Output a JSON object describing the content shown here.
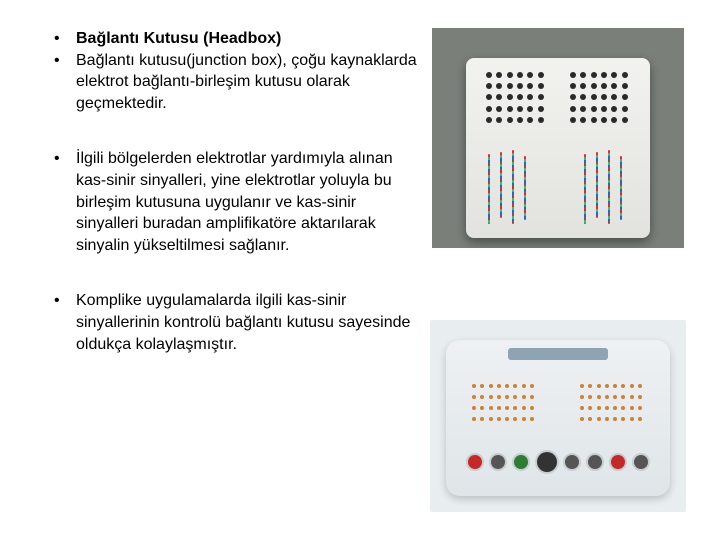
{
  "bullets": [
    {
      "bold": true,
      "text": "Bağlantı Kutusu (Headbox)"
    },
    {
      "bold": false,
      "text": "Bağlantı kutusu(junction box), çoğu kaynaklarda elektrot bağlantı-birleşim kutusu olarak geçmektedir."
    },
    {
      "bold": false,
      "text": "İlgili bölgelerden elektrotlar yardımıyla alınan kas-sinir sinyalleri, yine elektrotlar yoluyla bu birleşim kutusuna uygulanır ve kas-sinir sinyalleri buradan amplifikatöre aktarılarak sinyalin yükseltilmesi sağlanır."
    },
    {
      "bold": false,
      "text": "Komplike uygulamalarda ilgili kas-sinir sinyallerinin kontrolü bağlantı kutusu sayesinde oldukça kolaylaşmıştır."
    }
  ],
  "groups": [
    [
      0,
      1
    ],
    [
      2
    ],
    [
      3
    ]
  ],
  "image_top_alt": "headbox-device-photo",
  "image_bottom_alt": "amplifier-device-photo"
}
